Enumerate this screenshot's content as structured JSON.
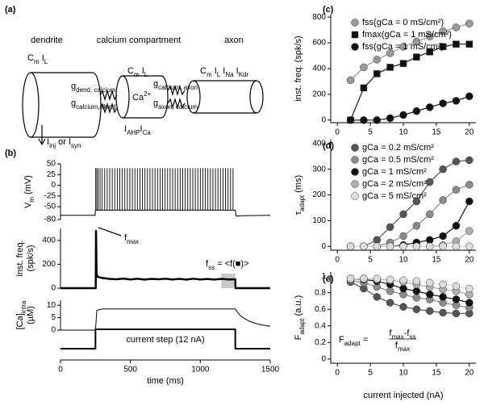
{
  "diagram": {
    "label": "(a)",
    "dendrite": "dendrite",
    "calcium": "calcium compartment",
    "axon": "axon",
    "dend_currents": [
      [
        "C",
        "m"
      ],
      " ",
      [
        "I",
        "L"
      ]
    ],
    "ca_currents": [
      [
        "C",
        "m"
      ],
      " ",
      [
        "I",
        "L"
      ]
    ],
    "ca_label": [
      [
        "Ca",
        "2+"
      ]
    ],
    "ca_out": [
      [
        "I",
        "AHP"
      ],
      [
        "I",
        "Ca"
      ]
    ],
    "axon_currents": [
      [
        "C",
        "m"
      ],
      " ",
      [
        "I",
        "L"
      ],
      " ",
      [
        "I",
        "Na"
      ],
      " ",
      [
        "I",
        "Kdr"
      ]
    ],
    "g1": [
      [
        "g",
        "dend, calcium"
      ]
    ],
    "g2": [
      [
        "g",
        "calcium, dend"
      ]
    ],
    "g3": [
      [
        "g",
        "calcium, axon"
      ]
    ],
    "g4": [
      [
        "g",
        "axon, calcium"
      ]
    ],
    "input": [
      [
        "I",
        "inj"
      ],
      [
        " or I",
        "syn"
      ]
    ]
  },
  "chart_data": [
    {
      "type": "line",
      "panel": "(b)",
      "ylabel": [
        [
          [
            "V",
            "m"
          ],
          " (mV)"
        ]
      ],
      "xlim": [
        0,
        1500
      ],
      "ylim": [
        -80,
        50
      ],
      "yticks": [
        -80,
        -50,
        -25,
        0,
        25,
        50
      ],
      "color": "#000000",
      "x": [
        0,
        248,
        250,
        1250,
        1256,
        1300,
        1500
      ],
      "values": [
        -70,
        -70,
        -58,
        -58,
        -72,
        -71,
        -70
      ],
      "spike_times": [
        252,
        260,
        270,
        283,
        298,
        316,
        334,
        352,
        370,
        388,
        406,
        424,
        442,
        460,
        478,
        496,
        514,
        532,
        550,
        568,
        586,
        604,
        622,
        640,
        658,
        676,
        694,
        712,
        730,
        748,
        766,
        784,
        802,
        820,
        838,
        856,
        874,
        892,
        910,
        928,
        946,
        964,
        982,
        1000,
        1018,
        1036,
        1054,
        1072,
        1090,
        1108,
        1126,
        1144,
        1162,
        1180,
        1198,
        1216,
        1234
      ],
      "spike_peak": 40,
      "spike_trough": -58
    },
    {
      "type": "line",
      "ylabel": [
        [
          "inst. freq."
        ],
        [
          "(spk/s)"
        ]
      ],
      "xlim": [
        0,
        1500
      ],
      "ylim": [
        0,
        500
      ],
      "yticks": [
        0,
        200,
        400
      ],
      "color": "#000000",
      "line_width": 2.5,
      "x": [
        0,
        252,
        254,
        258,
        265,
        280,
        300,
        350,
        400,
        450,
        500,
        550,
        600,
        650,
        700,
        750,
        800,
        850,
        900,
        950,
        1000,
        1050,
        1100,
        1150,
        1200,
        1250,
        1252,
        1500
      ],
      "values": [
        0,
        0,
        480,
        120,
        95,
        90,
        85,
        78,
        74,
        80,
        73,
        79,
        72,
        78,
        74,
        79,
        73,
        78,
        72,
        79,
        73,
        77,
        72,
        78,
        73,
        74,
        0,
        0
      ],
      "shade_x": [
        1150,
        1250
      ],
      "shade_color": "#c8c8c8",
      "annotations": [
        [
          [
            "f",
            "max"
          ]
        ],
        [
          [
            "f",
            "ss"
          ],
          " = <f(",
          "■",
          ")>"
        ]
      ]
    },
    {
      "type": "line",
      "ylabel": [
        [
          [
            "[Ca]",
            "intra"
          ]
        ],
        [
          "(µM)"
        ]
      ],
      "xlim": [
        0,
        1500
      ],
      "ylim": [
        0,
        12
      ],
      "yticks": [
        0,
        5,
        10
      ],
      "color": "#000000",
      "x": [
        0,
        250,
        260,
        300,
        1250,
        1275,
        1300,
        1350,
        1400,
        1450,
        1500
      ],
      "values": [
        0,
        0,
        8,
        8.5,
        8.5,
        6.5,
        5.2,
        3.6,
        2.6,
        2,
        1.6
      ]
    },
    {
      "type": "line",
      "label": "current step (12 nA)",
      "xlabel": "time (ms)",
      "xlim": [
        0,
        1500
      ],
      "ylim": [
        0,
        12
      ],
      "xticks": [
        0,
        500,
        1000,
        1500
      ],
      "color": "#000000",
      "line_width": 2,
      "x": [
        0,
        250,
        250,
        1250,
        1250,
        1500
      ],
      "values": [
        0,
        0,
        12,
        12,
        0,
        0
      ]
    },
    {
      "type": "line",
      "panel": "(c)",
      "ylabel": [
        [
          "inst. freq. (spk/s)"
        ]
      ],
      "legend": "upper left",
      "xlim": [
        -1,
        21
      ],
      "ylim": [
        -20,
        820
      ],
      "xticks": [
        0,
        5,
        10,
        15,
        20
      ],
      "yticks": [
        0,
        200,
        400,
        600,
        800
      ],
      "x": [
        2,
        4,
        6,
        8,
        10,
        12,
        14,
        16,
        18,
        20
      ],
      "series": [
        {
          "name": "fss(gCa = 0 mS/cm²)",
          "color": "#9a9a9a",
          "marker": "circle",
          "values": [
            310,
            410,
            470,
            520,
            570,
            610,
            650,
            690,
            720,
            750
          ]
        },
        {
          "name": "fmax(gCa = 1 mS/cm²)",
          "color": "#111111",
          "marker": "square",
          "values": [
            0,
            250,
            360,
            410,
            440,
            490,
            530,
            570,
            590,
            590
          ]
        },
        {
          "name": "fss(gCa = 1 mS/cm²)",
          "color": "#111111",
          "marker": "circle",
          "values": [
            0,
            0,
            0,
            15,
            40,
            70,
            100,
            130,
            150,
            185
          ]
        }
      ]
    },
    {
      "type": "line",
      "panel": "(d)",
      "ylabel": [
        [
          [
            "τ",
            "adapt"
          ],
          " (ms)"
        ]
      ],
      "legend": "upper left",
      "xlim": [
        -1,
        21
      ],
      "ylim": [
        -15,
        415
      ],
      "xticks": [
        0,
        5,
        10,
        15,
        20
      ],
      "yticks": [
        0,
        100,
        200,
        300,
        400
      ],
      "x": [
        2,
        4,
        6,
        8,
        10,
        12,
        14,
        16,
        18,
        20
      ],
      "series": [
        {
          "name": "gCa = 0.2 mS/cm²",
          "color": "#555555",
          "marker": "circle",
          "values": [
            0,
            0,
            25,
            75,
            125,
            175,
            250,
            300,
            330,
            335
          ]
        },
        {
          "name": "gCa = 0.5 mS/cm²",
          "color": "#8c8c8c",
          "marker": "circle",
          "values": [
            0,
            0,
            0,
            15,
            40,
            80,
            125,
            180,
            220,
            240
          ]
        },
        {
          "name": "gCa = 1 mS/cm²",
          "color": "#111111",
          "marker": "circle",
          "values": [
            0,
            0,
            0,
            0,
            5,
            15,
            25,
            40,
            80,
            175
          ]
        },
        {
          "name": "gCa = 2 mS/cm²",
          "color": "#b0b0b0",
          "marker": "circle",
          "values": [
            0,
            0,
            0,
            0,
            0,
            0,
            0,
            5,
            20,
            60
          ]
        },
        {
          "name": "gCa = 5 mS/cm²",
          "color": "#dcdcdc",
          "marker": "circle",
          "values": [
            0,
            0,
            0,
            0,
            0,
            0,
            0,
            0,
            0,
            0
          ]
        }
      ]
    },
    {
      "type": "line",
      "panel": "(e)",
      "ylabel": [
        [
          [
            "F",
            "adapt"
          ],
          " (a.u.)"
        ]
      ],
      "xlabel": "current injected (nA)",
      "xlim": [
        -1,
        21
      ],
      "ylim": [
        -0.05,
        1.05
      ],
      "xticks": [
        0,
        5,
        10,
        15,
        20
      ],
      "yticks": [
        0,
        0.2,
        0.4,
        0.6,
        0.8,
        1
      ],
      "formula": {
        "lhs": [
          [
            "F",
            "adapt"
          ],
          " ="
        ],
        "num": [
          [
            "f",
            "max"
          ],
          "-",
          [
            "f",
            "ss"
          ]
        ],
        "den": [
          [
            "f",
            "max"
          ]
        ]
      },
      "x": [
        2,
        4,
        6,
        8,
        10,
        12,
        14,
        16,
        18,
        20
      ],
      "series": [
        {
          "name": "gCa = 0.2 mS/cm²",
          "color": "#555555",
          "marker": "circle",
          "values": [
            0.93,
            0.85,
            0.75,
            0.68,
            0.63,
            0.6,
            0.58,
            0.56,
            0.55,
            0.55
          ]
        },
        {
          "name": "gCa = 0.5 mS/cm²",
          "color": "#8c8c8c",
          "marker": "circle",
          "values": [
            0.95,
            0.92,
            0.87,
            0.82,
            0.78,
            0.74,
            0.72,
            0.68,
            0.65,
            0.62
          ]
        },
        {
          "name": "gCa = 1 mS/cm²",
          "color": "#111111",
          "marker": "circle",
          "values": [
            0.97,
            0.96,
            0.94,
            0.9,
            0.85,
            0.82,
            0.78,
            0.75,
            0.72,
            0.68
          ]
        },
        {
          "name": "gCa = 2 mS/cm²",
          "color": "#b0b0b0",
          "marker": "circle",
          "values": [
            0.97,
            0.97,
            0.96,
            0.95,
            0.93,
            0.9,
            0.87,
            0.84,
            0.82,
            0.78
          ]
        },
        {
          "name": "gCa = 5 mS/cm²",
          "color": "#dcdcdc",
          "marker": "circle",
          "values": [
            0.97,
            0.97,
            0.97,
            0.96,
            0.95,
            0.94,
            0.92,
            0.9,
            0.88,
            0.85
          ]
        }
      ]
    }
  ]
}
